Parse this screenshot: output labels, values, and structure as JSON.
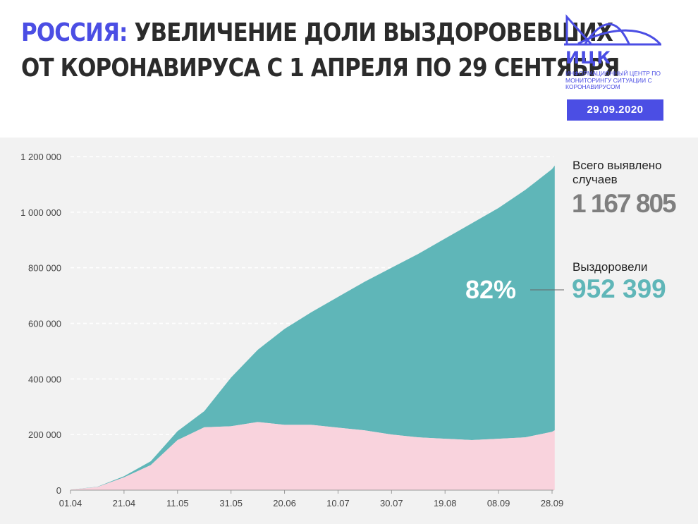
{
  "header": {
    "title_accent": "РОССИЯ:",
    "title_line1_rest": " УВЕЛИЧЕНИЕ ДОЛИ ВЫЗДОРОВЕВШИХ",
    "title_line2": "ОТ КОРОНАВИРУСА С 1 АПРЕЛЯ ПО 29 СЕНТЯБРЯ"
  },
  "logo": {
    "abbr": "ИЦК",
    "subtitle": "ИНФОРМАЦИОННЫЙ ЦЕНТР ПО МОНИТОРИНГУ СИТУАЦИИ С КОРОНАВИРУСОМ",
    "date": "29.09.2020"
  },
  "summary": {
    "total_label": "Всего выявлено случаев",
    "total_value": "1 167 805",
    "recovered_label": "Выздоровели",
    "recovered_value": "952 399",
    "recovered_share": "82%"
  },
  "colors": {
    "accent": "#4b4ee4",
    "recovered": "#5fb6b8",
    "active": "#f9d3dd",
    "total_text": "#7f7f7f"
  },
  "chart_data": {
    "type": "area",
    "stacked": true,
    "x_ticks": [
      "01.04",
      "21.04",
      "11.05",
      "31.05",
      "20.06",
      "10.07",
      "30.07",
      "19.08",
      "08.09",
      "28.09"
    ],
    "x": [
      "01.04",
      "11.04",
      "21.04",
      "01.05",
      "11.05",
      "21.05",
      "31.05",
      "10.06",
      "20.06",
      "30.06",
      "10.07",
      "20.07",
      "30.07",
      "09.08",
      "19.08",
      "29.08",
      "08.09",
      "18.09",
      "28.09",
      "29.09"
    ],
    "y_ticks": [
      0,
      200000,
      400000,
      600000,
      800000,
      1000000,
      1200000
    ],
    "y_tick_labels": [
      "0",
      "200 000",
      "400 000",
      "600 000",
      "800 000",
      "1 000 000",
      "1 200 000"
    ],
    "ylim": [
      0,
      1200000
    ],
    "grid": true,
    "series": [
      {
        "name": "Выздоровели",
        "values": [
          0,
          1000,
          4000,
          14000,
          32000,
          58000,
          175000,
          260000,
          345000,
          405000,
          470000,
          535000,
          600000,
          660000,
          720000,
          780000,
          830000,
          890000,
          945000,
          952399
        ]
      },
      {
        "name": "",
        "values": [
          2000,
          11000,
          46000,
          90000,
          180000,
          226000,
          230000,
          245000,
          235000,
          235000,
          225000,
          215000,
          200000,
          190000,
          185000,
          180000,
          185000,
          190000,
          210000,
          215406
        ]
      }
    ],
    "totals": [
      2000,
      12000,
      50000,
      104000,
      212000,
      284000,
      405000,
      505000,
      580000,
      640000,
      695000,
      750000,
      800000,
      850000,
      905000,
      960000,
      1015000,
      1080000,
      1155000,
      1167805
    ]
  }
}
